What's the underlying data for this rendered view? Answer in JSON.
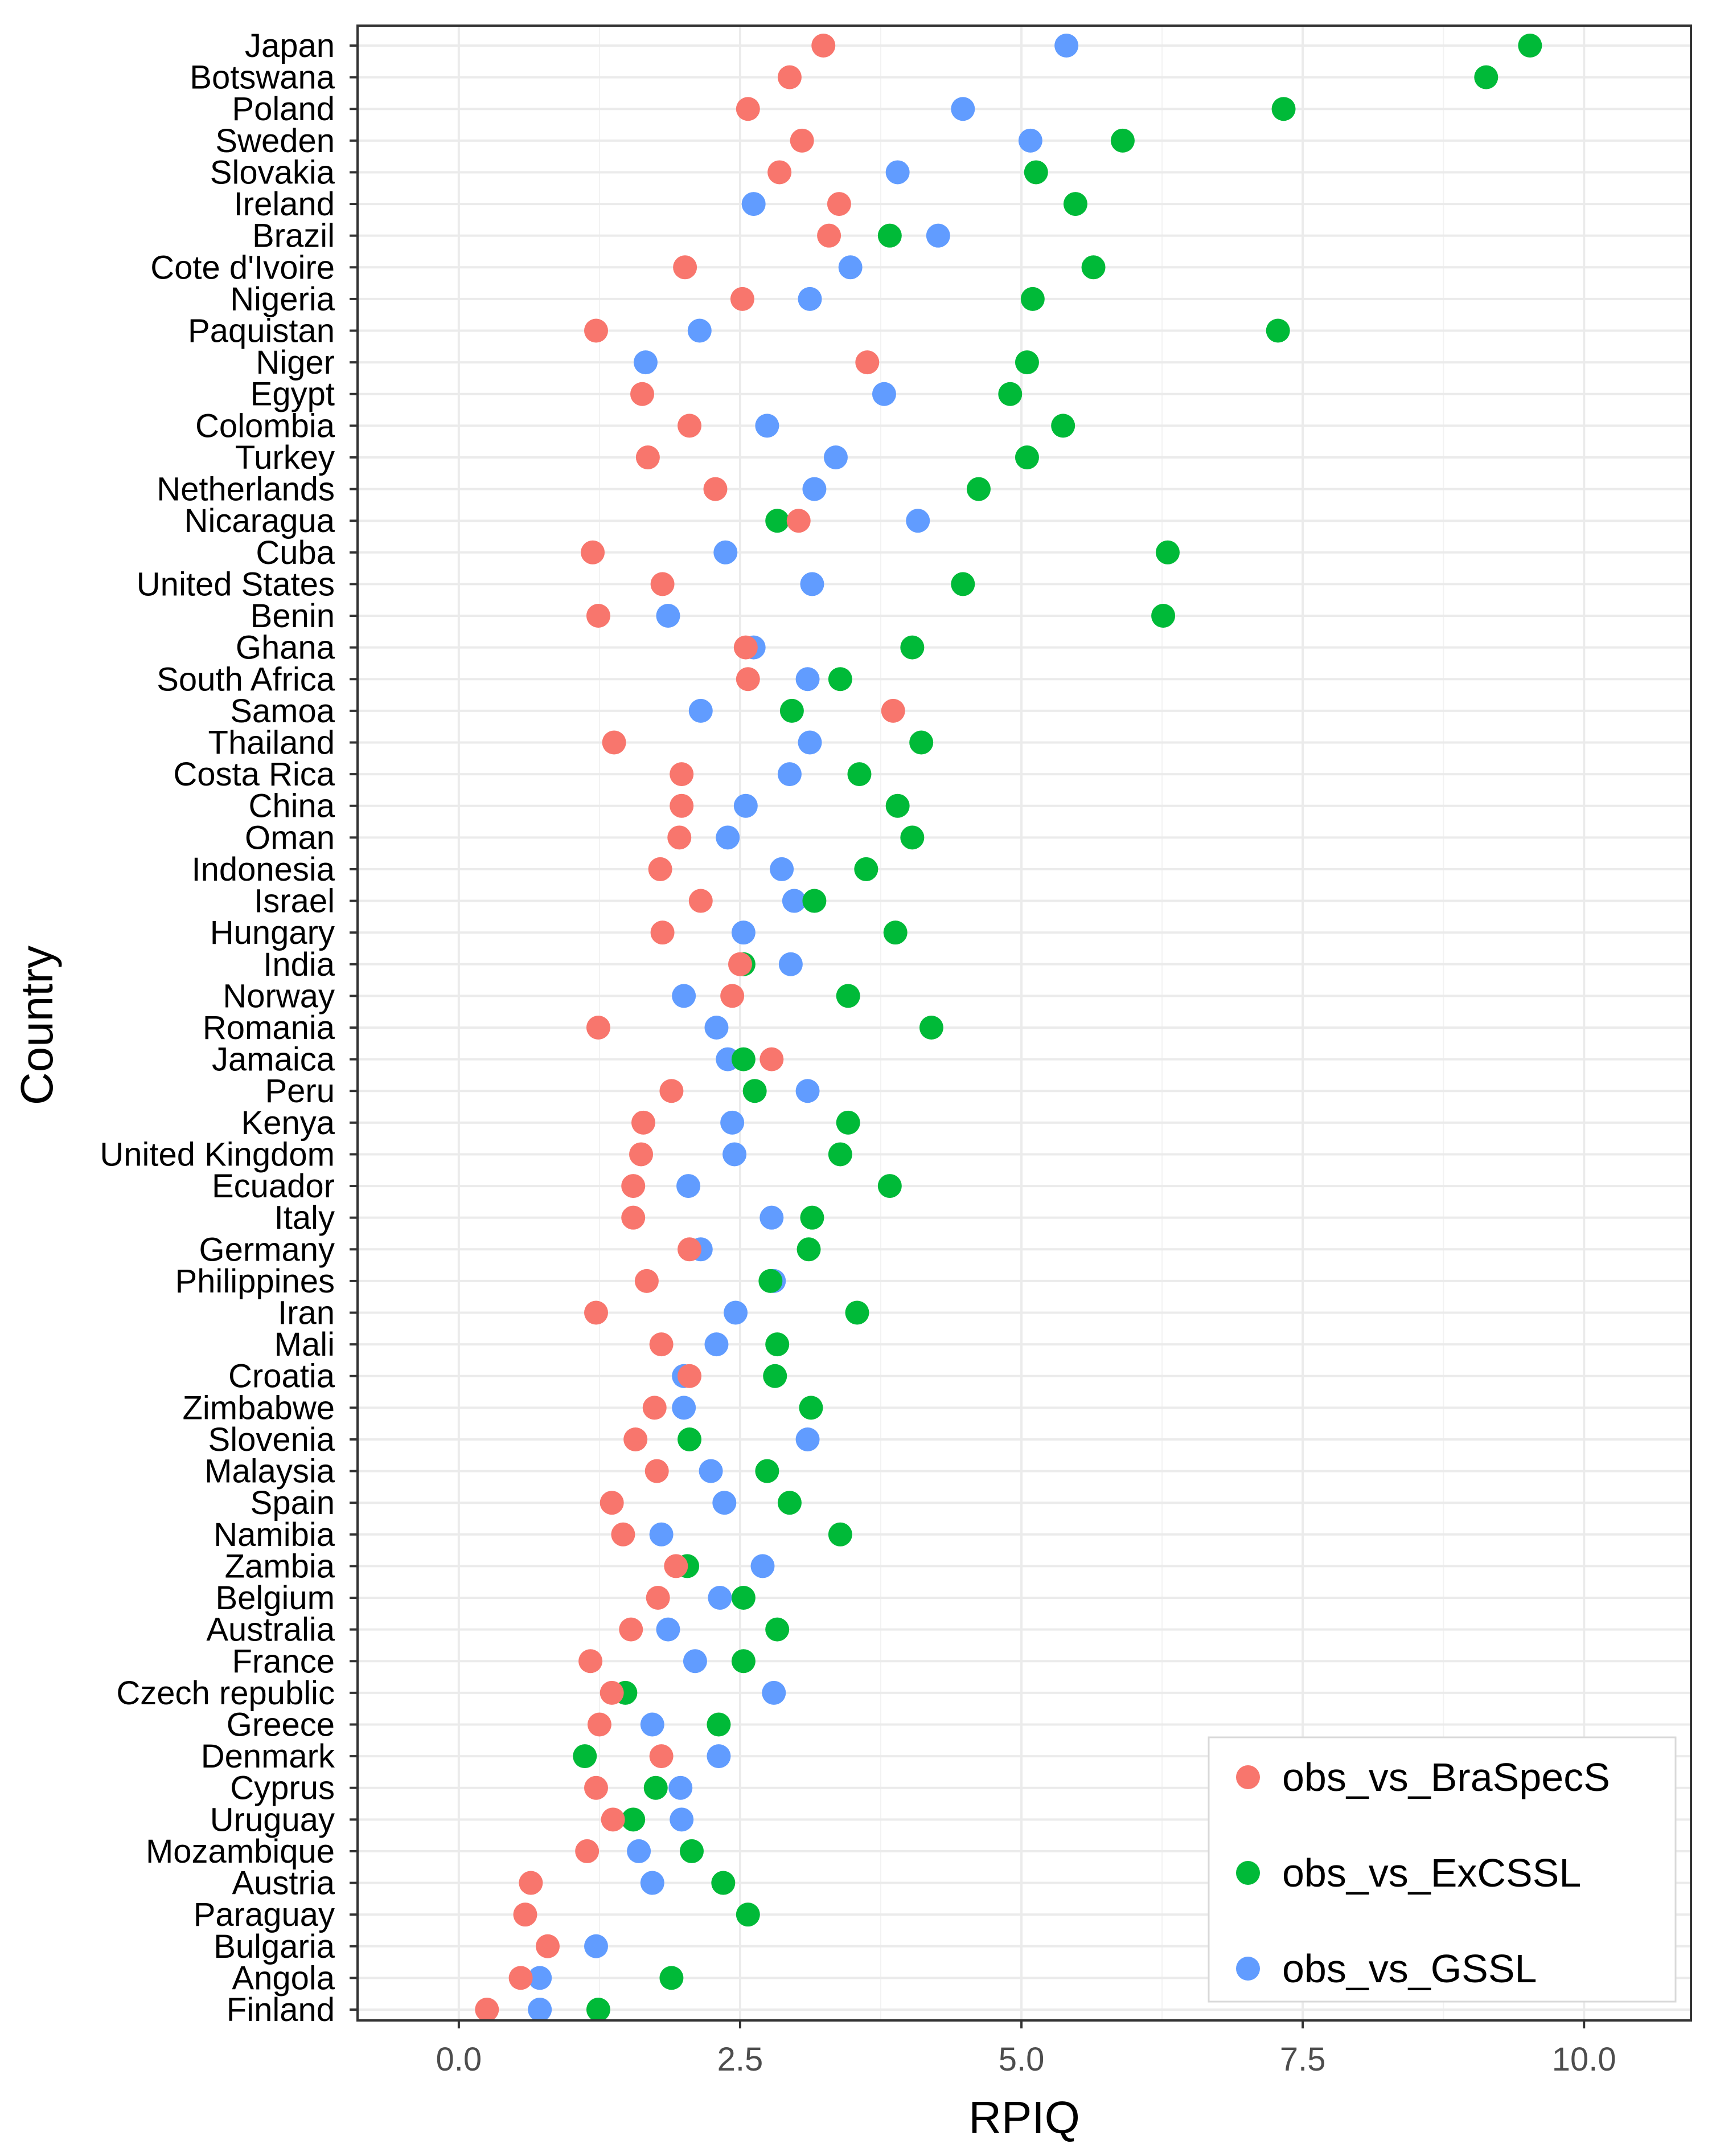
{
  "chart_data": {
    "type": "scatter",
    "xlabel": "RPIQ",
    "ylabel": "Country",
    "xlim": [
      -0.9,
      10.95
    ],
    "xticks": [
      0,
      2.5,
      5,
      7.5,
      10
    ],
    "xtick_labels": [
      "0.0",
      "2.5",
      "5.0",
      "7.5",
      "10.0"
    ],
    "grid": true,
    "legend_position": "bottom-right",
    "categories": [
      "Japan",
      "Botswana",
      "Poland",
      "Sweden",
      "Slovakia",
      "Ireland",
      "Brazil",
      "Cote d'Ivoire",
      "Nigeria",
      "Paquistan",
      "Niger",
      "Egypt",
      "Colombia",
      "Turkey",
      "Netherlands",
      "Nicaragua",
      "Cuba",
      "United States",
      "Benin",
      "Ghana",
      "South Africa",
      "Samoa",
      "Thailand",
      "Costa Rica",
      "China",
      "Oman",
      "Indonesia",
      "Israel",
      "Hungary",
      "India",
      "Norway",
      "Romania",
      "Jamaica",
      "Peru",
      "Kenya",
      "United Kingdom",
      "Ecuador",
      "Italy",
      "Germany",
      "Philippines",
      "Iran",
      "Mali",
      "Croatia",
      "Zimbabwe",
      "Slovenia",
      "Malaysia",
      "Spain",
      "Namibia",
      "Zambia",
      "Belgium",
      "Australia",
      "France",
      "Czech republic",
      "Greece",
      "Denmark",
      "Cyprus",
      "Uruguay",
      "Mozambique",
      "Austria",
      "Paraguay",
      "Bulgaria",
      "Angola",
      "Finland"
    ],
    "series": [
      {
        "name": "obs_vs_GSSL",
        "color": "#619CFF",
        "values": [
          5.4,
          null,
          4.48,
          5.08,
          3.9,
          2.62,
          4.26,
          3.48,
          3.12,
          2.14,
          1.66,
          3.78,
          2.74,
          3.35,
          3.16,
          4.08,
          2.37,
          3.14,
          1.86,
          2.62,
          3.1,
          2.15,
          3.12,
          2.94,
          2.55,
          2.39,
          2.87,
          2.98,
          2.53,
          2.95,
          2.0,
          2.29,
          2.39,
          3.1,
          2.43,
          2.45,
          2.04,
          2.78,
          2.15,
          2.8,
          2.46,
          2.29,
          2.0,
          2.0,
          3.1,
          2.24,
          2.36,
          1.8,
          2.7,
          2.32,
          1.86,
          2.1,
          2.8,
          1.72,
          2.31,
          1.97,
          1.98,
          1.6,
          1.72,
          null,
          1.22,
          0.72,
          0.72
        ]
      },
      {
        "name": "obs_vs_ExCSSL",
        "color": "#00BA38",
        "values": [
          9.52,
          9.13,
          7.33,
          5.9,
          5.13,
          5.48,
          3.83,
          5.64,
          5.1,
          7.28,
          5.05,
          4.9,
          5.37,
          5.05,
          4.62,
          2.83,
          6.3,
          4.48,
          6.26,
          4.03,
          3.39,
          2.96,
          4.11,
          3.56,
          3.9,
          4.03,
          3.62,
          3.16,
          3.88,
          2.53,
          3.46,
          4.2,
          2.53,
          2.63,
          3.46,
          3.39,
          3.83,
          3.14,
          3.11,
          2.77,
          3.54,
          2.83,
          2.81,
          3.13,
          2.05,
          2.74,
          2.94,
          3.39,
          2.03,
          2.53,
          2.83,
          2.53,
          1.48,
          2.31,
          1.12,
          1.75,
          1.55,
          2.07,
          2.35,
          2.57,
          null,
          1.89,
          1.24
        ]
      },
      {
        "name": "obs_vs_BraSpecS",
        "color": "#F8766D",
        "values": [
          3.24,
          2.94,
          2.57,
          3.05,
          2.85,
          3.38,
          3.29,
          2.01,
          2.52,
          1.22,
          3.63,
          1.63,
          2.05,
          1.68,
          2.28,
          3.02,
          1.19,
          1.81,
          1.24,
          2.55,
          2.57,
          3.86,
          1.38,
          1.98,
          1.98,
          1.96,
          1.79,
          2.15,
          1.81,
          2.5,
          2.43,
          1.24,
          2.78,
          1.89,
          1.64,
          1.62,
          1.55,
          1.55,
          2.05,
          1.67,
          1.22,
          1.8,
          2.05,
          1.74,
          1.57,
          1.76,
          1.36,
          1.46,
          1.93,
          1.77,
          1.53,
          1.17,
          1.36,
          1.25,
          1.8,
          1.22,
          1.37,
          1.14,
          0.64,
          0.59,
          0.79,
          0.55,
          0.25
        ]
      }
    ]
  }
}
